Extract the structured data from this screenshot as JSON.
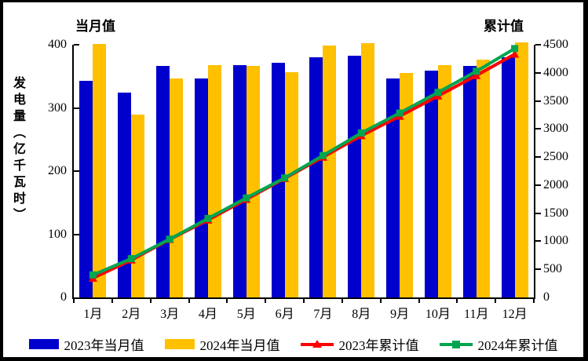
{
  "chart_data": {
    "type": "bar",
    "subtype": "bar+line combo, dual axis",
    "title_left": "当月值",
    "title_right": "累计值",
    "ylabel_left": "发电量（亿千瓦时）",
    "categories": [
      "1月",
      "2月",
      "3月",
      "4月",
      "5月",
      "6月",
      "7月",
      "8月",
      "9月",
      "10月",
      "11月",
      "12月"
    ],
    "series": [
      {
        "name": "2023年当月值",
        "type": "bar",
        "axis": "left",
        "color": "#0000CC",
        "marker": "none",
        "values": [
          343,
          324,
          366,
          346,
          368,
          371,
          380,
          383,
          346,
          359,
          366,
          380
        ]
      },
      {
        "name": "2024年当月值",
        "type": "bar",
        "axis": "left",
        "color": "#FFC000",
        "marker": "none",
        "values": [
          401,
          290,
          347,
          368,
          366,
          356,
          399,
          402,
          355,
          368,
          376,
          404
        ]
      },
      {
        "name": "2023年累计值",
        "type": "line",
        "axis": "right",
        "color": "#FF0000",
        "marker": "triangle",
        "values": [
          343,
          667,
          1033,
          1379,
          1747,
          2118,
          2498,
          2881,
          3227,
          3586,
          3952,
          4332
        ]
      },
      {
        "name": "2024年累计值",
        "type": "line",
        "axis": "right",
        "color": "#00A550",
        "marker": "square",
        "values": [
          401,
          691,
          1038,
          1406,
          1772,
          2128,
          2527,
          2929,
          3284,
          3652,
          4028,
          4432
        ]
      }
    ],
    "left_axis": {
      "min": 0,
      "max": 400,
      "ticks": [
        0,
        100,
        200,
        300,
        400
      ]
    },
    "right_axis": {
      "min": 0,
      "max": 4500,
      "ticks": [
        0,
        500,
        1000,
        1500,
        2000,
        2500,
        3000,
        3500,
        4000,
        4500
      ]
    },
    "grid": false,
    "legend_position": "bottom",
    "colors": {
      "axis": "#000000",
      "background": "#FFFFFF",
      "border": "#000000"
    }
  }
}
